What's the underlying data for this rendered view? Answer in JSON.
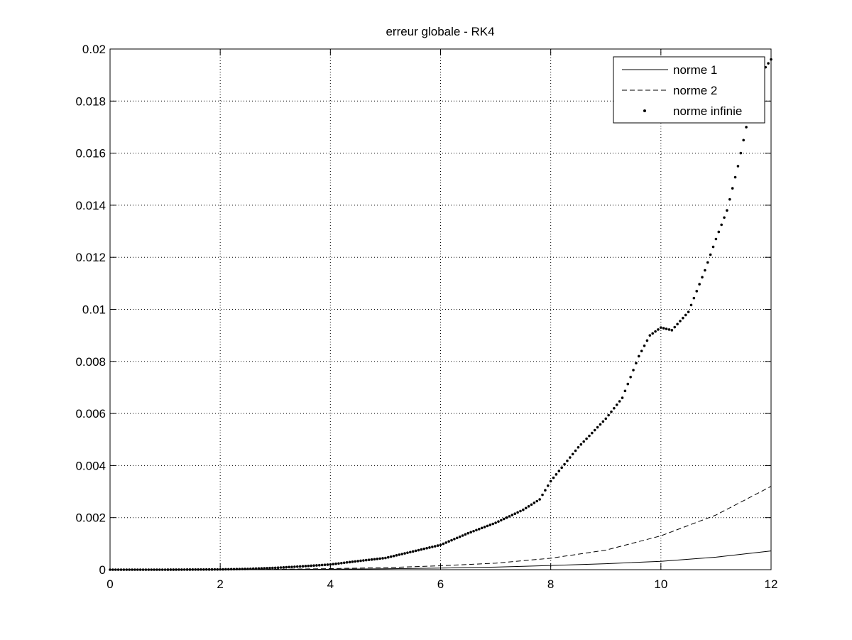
{
  "chart_data": {
    "type": "line",
    "title": "erreur globale - RK4",
    "xlabel": "",
    "ylabel": "",
    "xlim": [
      0,
      12
    ],
    "ylim": [
      0,
      0.02
    ],
    "xticks": [
      "0",
      "2",
      "4",
      "6",
      "8",
      "10",
      "12"
    ],
    "yticks": [
      "0",
      "0.002",
      "0.004",
      "0.006",
      "0.008",
      "0.01",
      "0.012",
      "0.014",
      "0.016",
      "0.018",
      "0.02"
    ],
    "grid": true,
    "legend_position": "top-right",
    "series": [
      {
        "name": "norme 1",
        "style": "solid",
        "points": [
          [
            0,
            0
          ],
          [
            1,
            0
          ],
          [
            2,
            2e-06
          ],
          [
            3,
            6e-06
          ],
          [
            4,
            1.6e-05
          ],
          [
            5,
            3.5e-05
          ],
          [
            6,
            6e-05
          ],
          [
            7,
            0.0001
          ],
          [
            8,
            0.00016
          ],
          [
            9,
            0.00023
          ],
          [
            10,
            0.00032
          ],
          [
            11,
            0.00048
          ],
          [
            12,
            0.00072
          ]
        ]
      },
      {
        "name": "norme 2",
        "style": "dashed",
        "points": [
          [
            0,
            0
          ],
          [
            1,
            1e-06
          ],
          [
            2,
            5e-06
          ],
          [
            3,
            1.5e-05
          ],
          [
            4,
            4e-05
          ],
          [
            5,
            8e-05
          ],
          [
            6,
            0.00015
          ],
          [
            7,
            0.00025
          ],
          [
            8,
            0.00044
          ],
          [
            9,
            0.00075
          ],
          [
            10,
            0.0013
          ],
          [
            11,
            0.0021
          ],
          [
            12,
            0.0032
          ]
        ]
      },
      {
        "name": "norme infinie",
        "style": "dots",
        "points": [
          [
            0,
            0
          ],
          [
            0.5,
            0
          ],
          [
            1,
            0
          ],
          [
            1.5,
            5e-06
          ],
          [
            2,
            1e-05
          ],
          [
            2.5,
            3e-05
          ],
          [
            3,
            7e-05
          ],
          [
            3.5,
            0.00013
          ],
          [
            4,
            0.0002
          ],
          [
            4.5,
            0.00033
          ],
          [
            5,
            0.00045
          ],
          [
            5.5,
            0.0007
          ],
          [
            6,
            0.00095
          ],
          [
            6.5,
            0.0014
          ],
          [
            7,
            0.0018
          ],
          [
            7.5,
            0.0023
          ],
          [
            7.8,
            0.0027
          ],
          [
            8,
            0.0034
          ],
          [
            8.5,
            0.0047
          ],
          [
            9,
            0.0058
          ],
          [
            9.3,
            0.0066
          ],
          [
            9.6,
            0.0082
          ],
          [
            9.8,
            0.009
          ],
          [
            10,
            0.0093
          ],
          [
            10.2,
            0.0092
          ],
          [
            10.5,
            0.0099
          ],
          [
            10.8,
            0.0115
          ],
          [
            11,
            0.0127
          ],
          [
            11.2,
            0.0138
          ],
          [
            11.4,
            0.0155
          ],
          [
            11.6,
            0.0175
          ],
          [
            11.8,
            0.019
          ],
          [
            12,
            0.0196
          ]
        ]
      }
    ]
  }
}
